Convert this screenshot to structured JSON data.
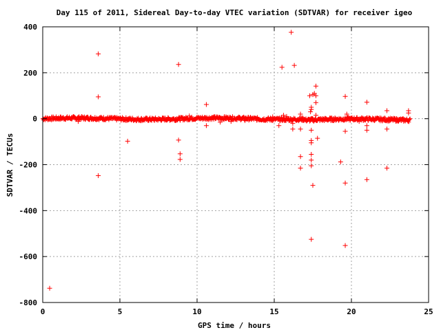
{
  "chart_data": {
    "type": "scatter",
    "title": "Day 115 of 2011, Sidereal Day-to-day VTEC variation (SDTVAR) for receiver igeo",
    "xlabel": "GPS time / hours",
    "ylabel": "SDTVAR / TECUs",
    "xlim": [
      0,
      25
    ],
    "ylim": [
      -800,
      400
    ],
    "xticks": [
      0,
      5,
      10,
      15,
      20,
      25
    ],
    "yticks": [
      -800,
      -600,
      -400,
      -200,
      0,
      200,
      400
    ],
    "xtick_labels": [
      "0",
      "5",
      "10",
      "15",
      "20",
      "25"
    ],
    "ytick_labels": [
      "-800",
      "-600",
      "-400",
      "-200",
      "0",
      "200",
      "400"
    ],
    "grid": true,
    "marker": "+",
    "color": "#ff0000",
    "band": {
      "x_range": [
        0,
        23.8
      ],
      "y_spread": 8
    },
    "points": [
      [
        0.45,
        -738
      ],
      [
        3.6,
        282
      ],
      [
        3.6,
        95
      ],
      [
        3.6,
        -248
      ],
      [
        5.5,
        -98
      ],
      [
        8.8,
        236
      ],
      [
        8.8,
        -93
      ],
      [
        8.9,
        -153
      ],
      [
        8.9,
        -177
      ],
      [
        10.6,
        62
      ],
      [
        10.6,
        -30
      ],
      [
        15.3,
        -30
      ],
      [
        15.5,
        224
      ],
      [
        16.1,
        376
      ],
      [
        16.3,
        232
      ],
      [
        16.2,
        -20
      ],
      [
        16.2,
        -45
      ],
      [
        16.7,
        20
      ],
      [
        16.7,
        -45
      ],
      [
        16.7,
        -165
      ],
      [
        16.7,
        -215
      ],
      [
        17.3,
        100
      ],
      [
        17.35,
        30
      ],
      [
        17.4,
        40
      ],
      [
        17.4,
        50
      ],
      [
        17.4,
        -50
      ],
      [
        17.4,
        -95
      ],
      [
        17.4,
        -105
      ],
      [
        17.4,
        -155
      ],
      [
        17.4,
        -180
      ],
      [
        17.4,
        -205
      ],
      [
        17.4,
        -525
      ],
      [
        17.5,
        105
      ],
      [
        17.5,
        -290
      ],
      [
        17.6,
        110
      ],
      [
        17.7,
        142
      ],
      [
        17.7,
        100
      ],
      [
        17.7,
        70
      ],
      [
        17.7,
        15
      ],
      [
        17.8,
        -85
      ],
      [
        19.3,
        -188
      ],
      [
        19.6,
        97
      ],
      [
        19.7,
        20
      ],
      [
        19.6,
        -55
      ],
      [
        19.6,
        -280
      ],
      [
        19.6,
        -552
      ],
      [
        21.0,
        72
      ],
      [
        21.0,
        -30
      ],
      [
        21.0,
        -50
      ],
      [
        21.0,
        -265
      ],
      [
        22.3,
        35
      ],
      [
        22.3,
        -45
      ],
      [
        22.3,
        -215
      ],
      [
        23.7,
        35
      ],
      [
        23.7,
        25
      ],
      [
        15.6,
        15
      ],
      [
        15.8,
        10
      ],
      [
        14.9,
        8
      ],
      [
        2.3,
        -12
      ],
      [
        11.5,
        -15
      ],
      [
        12.2,
        -12
      ],
      [
        8.6,
        -8
      ],
      [
        9.5,
        12
      ],
      [
        13.1,
        -8
      ],
      [
        20.5,
        -12
      ]
    ]
  }
}
